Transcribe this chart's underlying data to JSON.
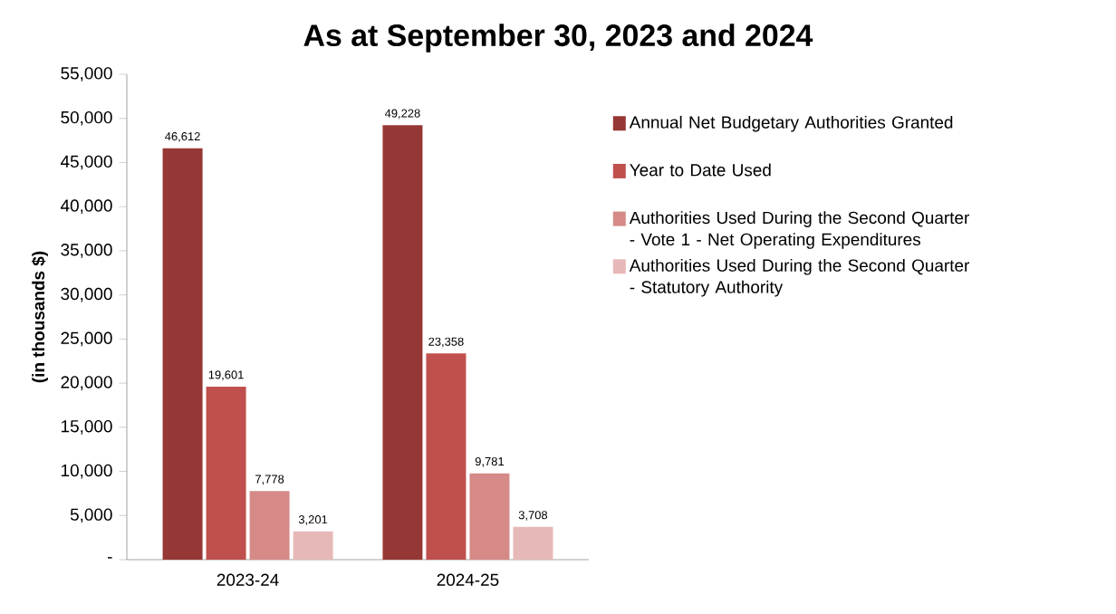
{
  "chart_data": {
    "type": "bar",
    "title": "As at September 30, 2023 and 2024",
    "ylabel": "(in thousands $)",
    "categories": [
      "2023-24",
      "2024-25"
    ],
    "series": [
      {
        "name": "Annual Net Budgetary Authorities Granted",
        "color": "#953735",
        "values": [
          46612,
          49228
        ],
        "value_labels": [
          "46,612",
          "49,228"
        ]
      },
      {
        "name": "Year to Date Used",
        "color": "#c0504d",
        "values": [
          19601,
          23358
        ],
        "value_labels": [
          "19,601",
          "23,358"
        ]
      },
      {
        "name": "Authorities Used During the Second Quarter - Vote 1 - Net Operating Expenditures",
        "color": "#d58a88",
        "values": [
          7778,
          9781
        ],
        "value_labels": [
          "7,778",
          "9,781"
        ]
      },
      {
        "name": "Authorities Used During the Second Quarter  - Statutory Authority",
        "color": "#e6b9b8",
        "values": [
          3201,
          3708
        ],
        "value_labels": [
          "3,201",
          "3,708"
        ]
      }
    ],
    "ylim": [
      0,
      55000
    ],
    "yticks": [
      {
        "value": 0,
        "label": "-"
      },
      {
        "value": 5000,
        "label": "5,000"
      },
      {
        "value": 10000,
        "label": "10,000"
      },
      {
        "value": 15000,
        "label": "15,000"
      },
      {
        "value": 20000,
        "label": "20,000"
      },
      {
        "value": 25000,
        "label": "25,000"
      },
      {
        "value": 30000,
        "label": "30,000"
      },
      {
        "value": 35000,
        "label": "35,000"
      },
      {
        "value": 40000,
        "label": "40,000"
      },
      {
        "value": 45000,
        "label": "45,000"
      },
      {
        "value": 50000,
        "label": "50,000"
      },
      {
        "value": 55000,
        "label": "55,000"
      }
    ],
    "legend": "right",
    "grid": false
  }
}
